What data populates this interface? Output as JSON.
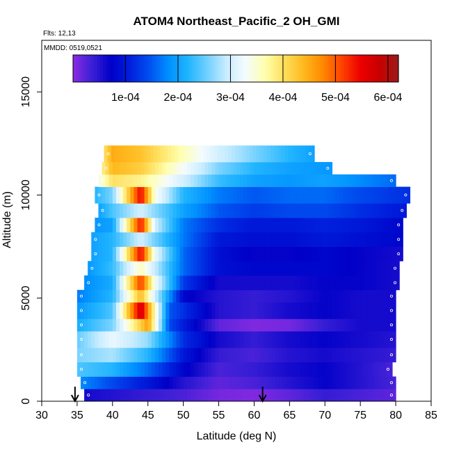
{
  "chart_data": {
    "type": "heatmap",
    "title": "ATOM4 Northeast_Pacific_2 OH_GMI",
    "annotations": {
      "flights": "Flts: 12,13",
      "dates": "MMDD: 0519,0521"
    },
    "xlabel": "Latitude (deg N)",
    "ylabel": "Altitude (m)",
    "xlim": [
      30,
      85
    ],
    "ylim": [
      0,
      17500
    ],
    "x_ticks": [
      30,
      35,
      40,
      45,
      50,
      55,
      60,
      65,
      70,
      75,
      80,
      85
    ],
    "x_tick_labels": [
      "30",
      "35",
      "40",
      "45",
      "50",
      "55",
      "60",
      "65",
      "70",
      "75",
      "80",
      "85"
    ],
    "y_ticks": [
      0,
      5000,
      10000,
      15000
    ],
    "y_tick_labels": [
      "0",
      "5000",
      "10000",
      "15000"
    ],
    "colorbar": {
      "range": [
        0,
        0.00062
      ],
      "ticks": [
        0.0001,
        0.0002,
        0.0003,
        0.0004,
        0.0005,
        0.0006
      ],
      "tick_labels": [
        "1e-04",
        "2e-04",
        "3e-04",
        "4e-04",
        "5e-04",
        "6e-04"
      ],
      "colors": [
        "#8a2be2",
        "#3b1fd6",
        "#0000c8",
        "#0020dd",
        "#0050f0",
        "#0090ff",
        "#20b4ff",
        "#70d0ff",
        "#c8ecff",
        "#f4fbff",
        "#ffffb0",
        "#ffe060",
        "#ffbb20",
        "#ff8c00",
        "#ff4500",
        "#ee0000",
        "#c80000",
        "#9b1b1b"
      ]
    },
    "arrows_latitude": [
      34.7,
      61.2
    ],
    "bands": [
      {
        "alt": [
          0,
          600
        ],
        "lat": [
          36,
          80
        ],
        "values": [
          {
            "lat": 36,
            "v": 6e-05
          },
          {
            "lat": 45,
            "v": 4e-05
          },
          {
            "lat": 50,
            "v": 3e-05
          },
          {
            "lat": 55,
            "v": 1e-05
          },
          {
            "lat": 60,
            "v": 5e-06
          },
          {
            "lat": 65,
            "v": 2e-05
          },
          {
            "lat": 70,
            "v": 4e-05
          },
          {
            "lat": 75,
            "v": 3e-05
          },
          {
            "lat": 80,
            "v": 2e-05
          }
        ]
      },
      {
        "alt": [
          600,
          1200
        ],
        "lat": [
          35.5,
          80
        ],
        "values": [
          {
            "lat": 35.5,
            "v": 0.00018
          },
          {
            "lat": 40,
            "v": 0.00014
          },
          {
            "lat": 45,
            "v": 0.0001
          },
          {
            "lat": 50,
            "v": 5e-05
          },
          {
            "lat": 55,
            "v": 2e-05
          },
          {
            "lat": 60,
            "v": 3e-05
          },
          {
            "lat": 65,
            "v": 5e-05
          },
          {
            "lat": 70,
            "v": 7e-05
          },
          {
            "lat": 75,
            "v": 5e-05
          },
          {
            "lat": 80,
            "v": 3e-05
          }
        ]
      },
      {
        "alt": [
          1200,
          1900
        ],
        "lat": [
          35,
          79.5
        ],
        "values": [
          {
            "lat": 35,
            "v": 0.00024
          },
          {
            "lat": 40,
            "v": 0.00022
          },
          {
            "lat": 45,
            "v": 0.00016
          },
          {
            "lat": 50,
            "v": 8e-05
          },
          {
            "lat": 55,
            "v": 3e-05
          },
          {
            "lat": 60,
            "v": 4e-05
          },
          {
            "lat": 65,
            "v": 6e-05
          },
          {
            "lat": 70,
            "v": 7e-05
          },
          {
            "lat": 75,
            "v": 5e-05
          },
          {
            "lat": 79.5,
            "v": 3e-05
          }
        ]
      },
      {
        "alt": [
          1900,
          2600
        ],
        "lat": [
          35,
          80
        ],
        "values": [
          {
            "lat": 35,
            "v": 0.00026
          },
          {
            "lat": 40,
            "v": 0.00028
          },
          {
            "lat": 45,
            "v": 0.00022
          },
          {
            "lat": 50,
            "v": 0.0001
          },
          {
            "lat": 55,
            "v": 4e-05
          },
          {
            "lat": 60,
            "v": 3e-05
          },
          {
            "lat": 65,
            "v": 5e-05
          },
          {
            "lat": 70,
            "v": 6e-05
          },
          {
            "lat": 75,
            "v": 5e-05
          },
          {
            "lat": 80,
            "v": 4e-05
          }
        ]
      },
      {
        "alt": [
          2600,
          3400
        ],
        "lat": [
          35,
          80
        ],
        "values": [
          {
            "lat": 35,
            "v": 0.00025
          },
          {
            "lat": 40,
            "v": 0.00032
          },
          {
            "lat": 45,
            "v": 0.00027
          },
          {
            "lat": 50,
            "v": 0.00012
          },
          {
            "lat": 55,
            "v": 6e-05
          },
          {
            "lat": 60,
            "v": 4e-05
          },
          {
            "lat": 65,
            "v": 6e-05
          },
          {
            "lat": 70,
            "v": 7e-05
          },
          {
            "lat": 75,
            "v": 6e-05
          },
          {
            "lat": 80,
            "v": 5e-05
          }
        ]
      },
      {
        "alt": [
          3400,
          4000
        ],
        "lat": [
          35,
          80
        ],
        "values": [
          {
            "lat": 35,
            "v": 0.00021
          },
          {
            "lat": 40,
            "v": 0.00026
          },
          {
            "lat": 43,
            "v": 0.00038
          },
          {
            "lat": 45,
            "v": 0.00046
          },
          {
            "lat": 48,
            "v": 0.00014
          },
          {
            "lat": 55,
            "v": 2e-05
          },
          {
            "lat": 60,
            "v": 5e-06
          },
          {
            "lat": 65,
            "v": 1e-05
          },
          {
            "lat": 70,
            "v": 4e-05
          },
          {
            "lat": 75,
            "v": 6e-05
          },
          {
            "lat": 80,
            "v": 6e-05
          }
        ]
      },
      {
        "alt": [
          4000,
          4800
        ],
        "lat": [
          35,
          80
        ],
        "values": [
          {
            "lat": 35,
            "v": 0.00019
          },
          {
            "lat": 40,
            "v": 0.00024
          },
          {
            "lat": 44,
            "v": 0.00058
          },
          {
            "lat": 46,
            "v": 0.00036
          },
          {
            "lat": 48,
            "v": 0.00015
          },
          {
            "lat": 55,
            "v": 5e-05
          },
          {
            "lat": 60,
            "v": 4e-05
          },
          {
            "lat": 65,
            "v": 6e-05
          },
          {
            "lat": 70,
            "v": 7e-05
          },
          {
            "lat": 75,
            "v": 6e-05
          },
          {
            "lat": 80,
            "v": 6e-05
          }
        ]
      },
      {
        "alt": [
          4800,
          5400
        ],
        "lat": [
          35,
          80
        ],
        "values": [
          {
            "lat": 35,
            "v": 0.00017
          },
          {
            "lat": 40,
            "v": 0.00022
          },
          {
            "lat": 44,
            "v": 0.00044
          },
          {
            "lat": 46,
            "v": 0.0003
          },
          {
            "lat": 50,
            "v": 8e-05
          },
          {
            "lat": 55,
            "v": 5e-05
          },
          {
            "lat": 60,
            "v": 4e-05
          },
          {
            "lat": 65,
            "v": 5e-05
          },
          {
            "lat": 70,
            "v": 7e-05
          },
          {
            "lat": 75,
            "v": 6e-05
          },
          {
            "lat": 80,
            "v": 6e-05
          }
        ]
      },
      {
        "alt": [
          5400,
          6100
        ],
        "lat": [
          36,
          80.5
        ],
        "values": [
          {
            "lat": 36,
            "v": 0.00018
          },
          {
            "lat": 40,
            "v": 0.00021
          },
          {
            "lat": 44,
            "v": 0.00052
          },
          {
            "lat": 46,
            "v": 0.00033
          },
          {
            "lat": 50,
            "v": 0.00013
          },
          {
            "lat": 55,
            "v": 6e-05
          },
          {
            "lat": 60,
            "v": 6e-05
          },
          {
            "lat": 65,
            "v": 6e-05
          },
          {
            "lat": 70,
            "v": 7e-05
          },
          {
            "lat": 75,
            "v": 7e-05
          },
          {
            "lat": 80.5,
            "v": 6e-05
          }
        ]
      },
      {
        "alt": [
          6100,
          6800
        ],
        "lat": [
          36.5,
          80.5
        ],
        "values": [
          {
            "lat": 36.5,
            "v": 0.00019
          },
          {
            "lat": 40,
            "v": 0.00023
          },
          {
            "lat": 44,
            "v": 0.00036
          },
          {
            "lat": 50,
            "v": 0.00016
          },
          {
            "lat": 55,
            "v": 9e-05
          },
          {
            "lat": 60,
            "v": 8e-05
          },
          {
            "lat": 65,
            "v": 8e-05
          },
          {
            "lat": 70,
            "v": 8e-05
          },
          {
            "lat": 75,
            "v": 7e-05
          },
          {
            "lat": 80.5,
            "v": 6e-05
          }
        ]
      },
      {
        "alt": [
          6800,
          7500
        ],
        "lat": [
          37,
          81
        ],
        "values": [
          {
            "lat": 37,
            "v": 0.0002
          },
          {
            "lat": 40,
            "v": 0.00022
          },
          {
            "lat": 44,
            "v": 0.00055
          },
          {
            "lat": 46,
            "v": 0.00032
          },
          {
            "lat": 50,
            "v": 0.00016
          },
          {
            "lat": 55,
            "v": 9e-05
          },
          {
            "lat": 60,
            "v": 7e-05
          },
          {
            "lat": 65,
            "v": 7e-05
          },
          {
            "lat": 70,
            "v": 8e-05
          },
          {
            "lat": 75,
            "v": 7e-05
          },
          {
            "lat": 81,
            "v": 6e-05
          }
        ]
      },
      {
        "alt": [
          7500,
          8200
        ],
        "lat": [
          37,
          81
        ],
        "values": [
          {
            "lat": 37,
            "v": 0.0002
          },
          {
            "lat": 40,
            "v": 0.00022
          },
          {
            "lat": 44,
            "v": 0.0003
          },
          {
            "lat": 50,
            "v": 0.00017
          },
          {
            "lat": 55,
            "v": 0.0001
          },
          {
            "lat": 60,
            "v": 9e-05
          },
          {
            "lat": 65,
            "v": 9e-05
          },
          {
            "lat": 70,
            "v": 0.0001
          },
          {
            "lat": 75,
            "v": 9e-05
          },
          {
            "lat": 81,
            "v": 8e-05
          }
        ]
      },
      {
        "alt": [
          8200,
          8900
        ],
        "lat": [
          37.5,
          81
        ],
        "values": [
          {
            "lat": 37.5,
            "v": 0.00019
          },
          {
            "lat": 40,
            "v": 0.0002
          },
          {
            "lat": 44,
            "v": 0.00054
          },
          {
            "lat": 46,
            "v": 0.0003
          },
          {
            "lat": 50,
            "v": 0.00017
          },
          {
            "lat": 55,
            "v": 0.00012
          },
          {
            "lat": 60,
            "v": 0.0001
          },
          {
            "lat": 65,
            "v": 0.0001
          },
          {
            "lat": 70,
            "v": 0.00011
          },
          {
            "lat": 75,
            "v": 0.0001
          },
          {
            "lat": 81,
            "v": 8e-05
          }
        ]
      },
      {
        "alt": [
          8900,
          9600
        ],
        "lat": [
          38,
          81.5
        ],
        "values": [
          {
            "lat": 38,
            "v": 0.0002
          },
          {
            "lat": 40,
            "v": 0.00024
          },
          {
            "lat": 44,
            "v": 0.0003
          },
          {
            "lat": 50,
            "v": 0.0002
          },
          {
            "lat": 55,
            "v": 0.00015
          },
          {
            "lat": 60,
            "v": 0.00013
          },
          {
            "lat": 65,
            "v": 0.00014
          },
          {
            "lat": 70,
            "v": 0.00014
          },
          {
            "lat": 75,
            "v": 0.00012
          },
          {
            "lat": 81.5,
            "v": 0.0001
          }
        ]
      },
      {
        "alt": [
          9600,
          10400
        ],
        "lat": [
          37.5,
          82
        ],
        "values": [
          {
            "lat": 37.5,
            "v": 0.00022
          },
          {
            "lat": 40,
            "v": 0.00026
          },
          {
            "lat": 44,
            "v": 0.00055
          },
          {
            "lat": 46,
            "v": 0.00034
          },
          {
            "lat": 50,
            "v": 0.00022
          },
          {
            "lat": 55,
            "v": 0.00017
          },
          {
            "lat": 60,
            "v": 0.00015
          },
          {
            "lat": 65,
            "v": 0.00016
          },
          {
            "lat": 70,
            "v": 0.00016
          },
          {
            "lat": 75,
            "v": 0.00014
          },
          {
            "lat": 82,
            "v": 0.00012
          }
        ]
      },
      {
        "alt": [
          10400,
          11000
        ],
        "lat": [
          38,
          80
        ],
        "values": [
          {
            "lat": 38,
            "v": 0.00033
          },
          {
            "lat": 40,
            "v": 0.0004
          },
          {
            "lat": 44,
            "v": 0.00038
          },
          {
            "lat": 50,
            "v": 0.0003
          },
          {
            "lat": 55,
            "v": 0.00023
          },
          {
            "lat": 60,
            "v": 0.0002
          },
          {
            "lat": 65,
            "v": 0.00019
          },
          {
            "lat": 70,
            "v": 0.0002
          },
          {
            "lat": 75,
            "v": 0.00018
          },
          {
            "lat": 80,
            "v": 0.00016
          }
        ]
      },
      {
        "alt": [
          11000,
          11600
        ],
        "lat": [
          38.5,
          71
        ],
        "values": [
          {
            "lat": 38.5,
            "v": 0.00038
          },
          {
            "lat": 40,
            "v": 0.00044
          },
          {
            "lat": 44,
            "v": 0.00042
          },
          {
            "lat": 50,
            "v": 0.00033
          },
          {
            "lat": 55,
            "v": 0.00026
          },
          {
            "lat": 60,
            "v": 0.00022
          },
          {
            "lat": 65,
            "v": 0.0002
          },
          {
            "lat": 71,
            "v": 0.00019
          }
        ]
      },
      {
        "alt": [
          11600,
          12400
        ],
        "lat": [
          38.8,
          68.5
        ],
        "values": [
          {
            "lat": 38.8,
            "v": 0.0004
          },
          {
            "lat": 40,
            "v": 0.00045
          },
          {
            "lat": 44,
            "v": 0.00043
          },
          {
            "lat": 50,
            "v": 0.00036
          },
          {
            "lat": 55,
            "v": 0.0003
          },
          {
            "lat": 60,
            "v": 0.00026
          },
          {
            "lat": 65,
            "v": 0.00022
          },
          {
            "lat": 68.5,
            "v": 0.0002
          }
        ]
      }
    ]
  }
}
